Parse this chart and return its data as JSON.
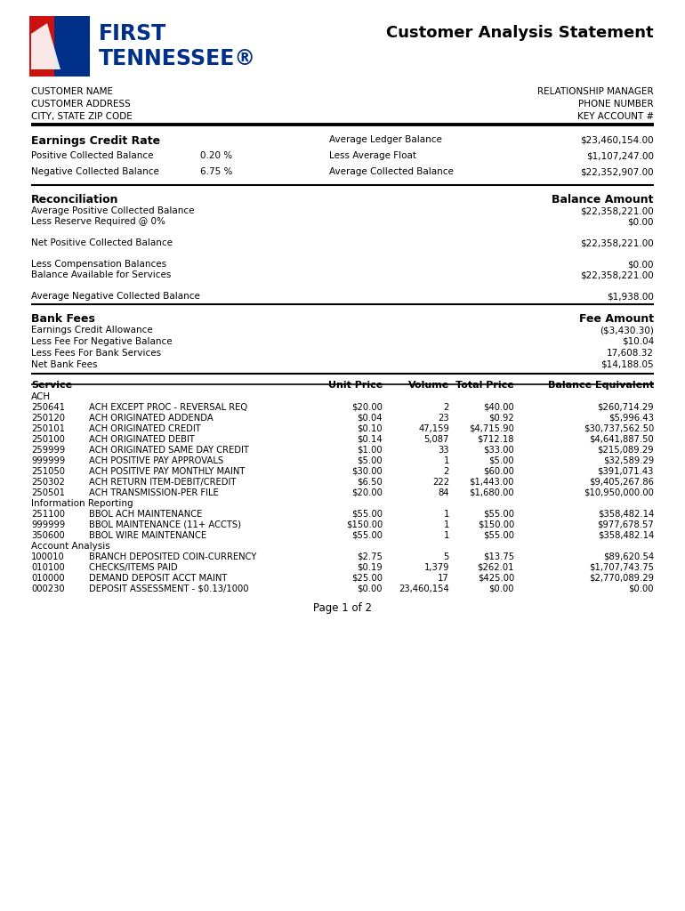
{
  "title": "Customer Analysis Statement",
  "logo_text1": "FIRST",
  "logo_text2": "TENNESSEE",
  "logo_reg": "®",
  "customer_left": [
    "CUSTOMER NAME",
    "CUSTOMER ADDRESS",
    "CITY, STATE ZIP CODE"
  ],
  "customer_right": [
    "RELATIONSHIP MANAGER",
    "PHONE NUMBER",
    "KEY ACCOUNT #"
  ],
  "ecr_section_title": "Earnings Credit Rate",
  "ecr_main_label": "Average Ledger Balance",
  "ecr_main_value": "$23,460,154.00",
  "ecr_rows": [
    [
      "Positive Collected Balance",
      "0.20 %",
      "Less Average Float",
      "$1,107,247.00"
    ],
    [
      "Negative Collected Balance",
      "6.75 %",
      "Average Collected Balance",
      "$22,352,907.00"
    ]
  ],
  "recon_title": "Reconciliation",
  "recon_right_title": "Balance Amount",
  "recon_rows": [
    [
      "Average Positive Collected Balance",
      "$22,358,221.00",
      false
    ],
    [
      "Less Reserve Required @ 0%",
      "$0.00",
      false
    ],
    [
      "",
      "",
      false
    ],
    [
      "Net Positive Collected Balance",
      "$22,358,221.00",
      false
    ],
    [
      "",
      "",
      false
    ],
    [
      "Less Compensation Balances",
      "$0.00",
      false
    ],
    [
      "Balance Available for Services",
      "$22,358,221.00",
      false
    ],
    [
      "",
      "",
      false
    ],
    [
      "Average Negative Collected Balance",
      "$1,938.00",
      false
    ]
  ],
  "fees_title": "Bank Fees",
  "fees_right_title": "Fee Amount",
  "fees_rows": [
    [
      "Earnings Credit Allowance",
      "($3,430.30)"
    ],
    [
      "Less Fee For Negative Balance",
      "$10.04"
    ],
    [
      "Less Fees For Bank Services",
      "17,608.32"
    ],
    [
      "Net Bank Fees",
      "$14,188.05"
    ]
  ],
  "service_headers": [
    "Service",
    "Unit Price",
    "Volume",
    "Total Price",
    "Balance Equivalent"
  ],
  "service_category1": "ACH",
  "service_rows_ach": [
    [
      "250641",
      "ACH EXCEPT PROC - REVERSAL REQ",
      "$20.00",
      "2",
      "$40.00",
      "$260,714.29"
    ],
    [
      "250120",
      "ACH ORIGINATED ADDENDA",
      "$0.04",
      "23",
      "$0.92",
      "$5,996.43"
    ],
    [
      "250101",
      "ACH ORIGINATED CREDIT",
      "$0.10",
      "47,159",
      "$4,715.90",
      "$30,737,562.50"
    ],
    [
      "250100",
      "ACH ORIGINATED DEBIT",
      "$0.14",
      "5,087",
      "$712.18",
      "$4,641,887.50"
    ],
    [
      "259999",
      "ACH ORIGINATED SAME DAY CREDIT",
      "$1.00",
      "33",
      "$33.00",
      "$215,089.29"
    ],
    [
      "999999",
      "ACH POSITIVE PAY APPROVALS",
      "$5.00",
      "1",
      "$5.00",
      "$32,589.29"
    ],
    [
      "251050",
      "ACH POSITIVE PAY MONTHLY MAINT",
      "$30.00",
      "2",
      "$60.00",
      "$391,071.43"
    ],
    [
      "250302",
      "ACH RETURN ITEM-DEBIT/CREDIT",
      "$6.50",
      "222",
      "$1,443.00",
      "$9,405,267.86"
    ],
    [
      "250501",
      "ACH TRANSMISSION-PER FILE",
      "$20.00",
      "84",
      "$1,680.00",
      "$10,950,000.00"
    ]
  ],
  "service_category2": "Information Reporting",
  "service_rows_info": [
    [
      "251100",
      "BBOL ACH MAINTENANCE",
      "$55.00",
      "1",
      "$55.00",
      "$358,482.14"
    ],
    [
      "999999",
      "BBOL MAINTENANCE (11+ ACCTS)",
      "$150.00",
      "1",
      "$150.00",
      "$977,678.57"
    ],
    [
      "350600",
      "BBOL WIRE MAINTENANCE",
      "$55.00",
      "1",
      "$55.00",
      "$358,482.14"
    ]
  ],
  "service_category3": "Account Analysis",
  "service_rows_acct": [
    [
      "100010",
      "BRANCH DEPOSITED COIN-CURRENCY",
      "$2.75",
      "5",
      "$13.75",
      "$89,620.54"
    ],
    [
      "010100",
      "CHECKS/ITEMS PAID",
      "$0.19",
      "1,379",
      "$262.01",
      "$1,707,743.75"
    ],
    [
      "010000",
      "DEMAND DEPOSIT ACCT MAINT",
      "$25.00",
      "17",
      "$425.00",
      "$2,770,089.29"
    ],
    [
      "000230",
      "DEPOSIT ASSESSMENT - $0.13/1000",
      "$0.00",
      "23,460,154",
      "$0.00",
      "$0.00"
    ]
  ],
  "page_text": "Page 1 of 2",
  "bg_color": "#ffffff"
}
